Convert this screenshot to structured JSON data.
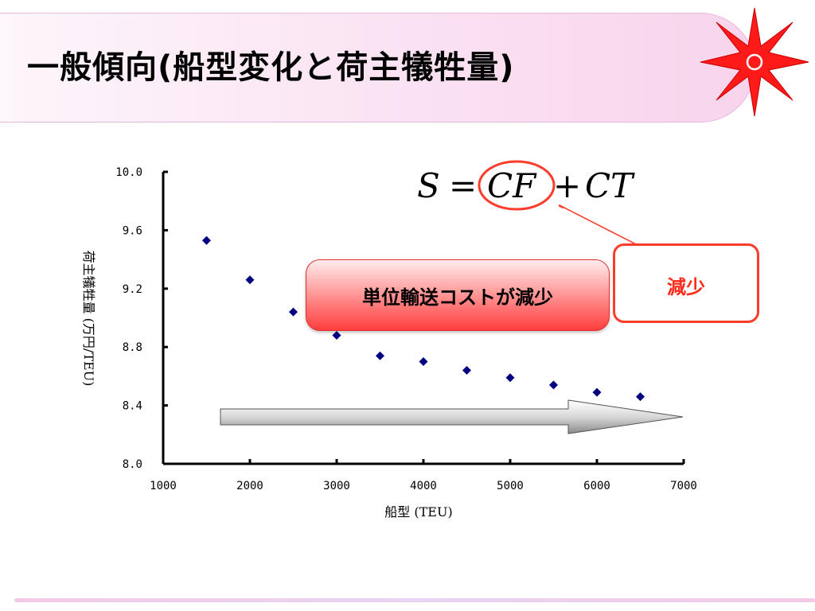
{
  "slide": {
    "title": "一般傾向(船型変化と荷主犠牲量)",
    "formula": {
      "S": "S",
      "eq": "=",
      "CF": "CF",
      "plus": "+",
      "CT": "CT"
    },
    "callout_main": "単位輸送コストが減少",
    "callout_side": "減少"
  },
  "colors": {
    "points": "#000080",
    "accent": "#ff3b2b",
    "logo": "#ff1a1a",
    "title_band": "#fae2f2"
  },
  "icons": {
    "logo": "red-compass-star-icon",
    "arrow": "gradient-right-arrow-icon"
  },
  "chart_data": {
    "type": "scatter",
    "xlabel": "船型 (TEU)",
    "ylabel": "荷主犠牲量 (万円/TEU)",
    "xlim": [
      1000,
      7000
    ],
    "ylim": [
      8.0,
      10.0
    ],
    "x_ticks": [
      "1000",
      "2000",
      "3000",
      "4000",
      "5000",
      "6000",
      "7000"
    ],
    "y_ticks": [
      "10.0",
      "9.6",
      "9.2",
      "8.8",
      "8.4",
      "8.0"
    ],
    "grid": false,
    "legend": "none",
    "series": [
      {
        "points": [
          {
            "x": 1500,
            "y": 9.53
          },
          {
            "x": 2000,
            "y": 9.26
          },
          {
            "x": 2500,
            "y": 9.04
          },
          {
            "x": 3000,
            "y": 8.88
          },
          {
            "x": 3500,
            "y": 8.74
          },
          {
            "x": 4000,
            "y": 8.7
          },
          {
            "x": 4500,
            "y": 8.64
          },
          {
            "x": 5000,
            "y": 8.59
          },
          {
            "x": 5500,
            "y": 8.54
          },
          {
            "x": 6000,
            "y": 8.49
          },
          {
            "x": 6500,
            "y": 8.46
          }
        ]
      }
    ]
  }
}
